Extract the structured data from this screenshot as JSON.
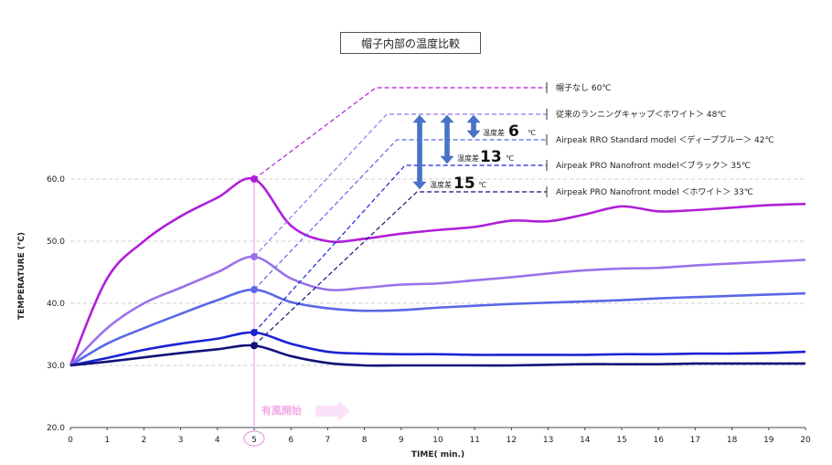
{
  "chart_data": {
    "type": "line",
    "title": "帽子内部の温度比較",
    "xlabel": "TIME( min.)",
    "ylabel": "TEMPERATURE (℃)",
    "xlim": [
      0,
      20
    ],
    "ylim": [
      20,
      60
    ],
    "xticks": [
      "0",
      "1",
      "2",
      "3",
      "4",
      "5",
      "6",
      "7",
      "8",
      "9",
      "10",
      "11",
      "12",
      "13",
      "14",
      "15",
      "16",
      "17",
      "18",
      "19",
      "20"
    ],
    "yticks": [
      "20.0",
      "30.0",
      "40.0",
      "50.0",
      "60.0"
    ],
    "grid": "horizontal dashed",
    "annotation_wind": {
      "label": "有風開始",
      "x": 5
    },
    "series": [
      {
        "name": "帽子なし 60℃",
        "color": "#b01fd8",
        "points": [
          [
            0,
            30
          ],
          [
            1,
            44
          ],
          [
            2,
            50
          ],
          [
            3,
            54
          ],
          [
            4,
            57
          ],
          [
            5,
            60
          ],
          [
            6,
            52.5
          ],
          [
            7,
            50
          ],
          [
            8,
            50.4
          ],
          [
            9,
            51.2
          ],
          [
            10,
            51.8
          ],
          [
            11,
            52.3
          ],
          [
            12,
            53.3
          ],
          [
            13,
            53.2
          ],
          [
            14,
            54.3
          ],
          [
            15,
            55.6
          ],
          [
            16,
            54.8
          ],
          [
            17,
            55
          ],
          [
            18,
            55.4
          ],
          [
            19,
            55.8
          ],
          [
            20,
            56
          ]
        ]
      },
      {
        "name": "従来のランニングキャップ＜ホワイト＞ 48℃",
        "color": "#9a72ea",
        "points": [
          [
            0,
            30
          ],
          [
            1,
            36
          ],
          [
            2,
            40
          ],
          [
            3,
            42.5
          ],
          [
            4,
            45
          ],
          [
            5,
            47.5
          ],
          [
            6,
            44
          ],
          [
            7,
            42.2
          ],
          [
            8,
            42.5
          ],
          [
            9,
            43
          ],
          [
            10,
            43.2
          ],
          [
            11,
            43.7
          ],
          [
            12,
            44.2
          ],
          [
            13,
            44.8
          ],
          [
            14,
            45.3
          ],
          [
            15,
            45.6
          ],
          [
            16,
            45.7
          ],
          [
            17,
            46.1
          ],
          [
            18,
            46.4
          ],
          [
            19,
            46.7
          ],
          [
            20,
            47
          ]
        ]
      },
      {
        "name": "Airpeak RRO Standard model ＜ディープブルー＞ 42℃",
        "color": "#5a67e6",
        "points": [
          [
            0,
            30
          ],
          [
            1,
            33.5
          ],
          [
            2,
            36
          ],
          [
            3,
            38.3
          ],
          [
            4,
            40.5
          ],
          [
            5,
            42.2
          ],
          [
            6,
            40.2
          ],
          [
            7,
            39.2
          ],
          [
            8,
            38.8
          ],
          [
            9,
            38.9
          ],
          [
            10,
            39.3
          ],
          [
            11,
            39.6
          ],
          [
            12,
            39.9
          ],
          [
            13,
            40.1
          ],
          [
            14,
            40.3
          ],
          [
            15,
            40.5
          ],
          [
            16,
            40.8
          ],
          [
            17,
            41
          ],
          [
            18,
            41.2
          ],
          [
            19,
            41.4
          ],
          [
            20,
            41.6
          ]
        ]
      },
      {
        "name": "Airpeak PRO Nanofront model＜ブラック＞ 35℃",
        "color": "#1b23d3",
        "points": [
          [
            0,
            30
          ],
          [
            1,
            31.2
          ],
          [
            2,
            32.5
          ],
          [
            3,
            33.5
          ],
          [
            4,
            34.3
          ],
          [
            5,
            35.3
          ],
          [
            6,
            33.5
          ],
          [
            7,
            32.2
          ],
          [
            8,
            31.9
          ],
          [
            9,
            31.8
          ],
          [
            10,
            31.8
          ],
          [
            11,
            31.7
          ],
          [
            12,
            31.7
          ],
          [
            13,
            31.7
          ],
          [
            14,
            31.7
          ],
          [
            15,
            31.8
          ],
          [
            16,
            31.8
          ],
          [
            17,
            31.9
          ],
          [
            18,
            31.9
          ],
          [
            19,
            32
          ],
          [
            20,
            32.2
          ]
        ]
      },
      {
        "name": "Airpeak PRO Nanofront model ＜ホワイト＞ 33℃",
        "color": "#12127a",
        "points": [
          [
            0,
            30
          ],
          [
            1,
            30.6
          ],
          [
            2,
            31.3
          ],
          [
            3,
            32
          ],
          [
            4,
            32.6
          ],
          [
            5,
            33.2
          ],
          [
            6,
            31.5
          ],
          [
            7,
            30.4
          ],
          [
            8,
            30
          ],
          [
            9,
            30
          ],
          [
            10,
            30
          ],
          [
            11,
            30
          ],
          [
            12,
            30
          ],
          [
            13,
            30.1
          ],
          [
            14,
            30.2
          ],
          [
            15,
            30.2
          ],
          [
            16,
            30.2
          ],
          [
            17,
            30.3
          ],
          [
            18,
            30.3
          ],
          [
            19,
            30.3
          ],
          [
            20,
            30.3
          ]
        ]
      }
    ],
    "differences": [
      {
        "prefix": "温度差",
        "value": "6",
        "unit": "℃"
      },
      {
        "prefix": "温度差",
        "value": "13",
        "unit": "℃"
      },
      {
        "prefix": "温度差",
        "value": "15",
        "unit": "℃"
      }
    ]
  }
}
